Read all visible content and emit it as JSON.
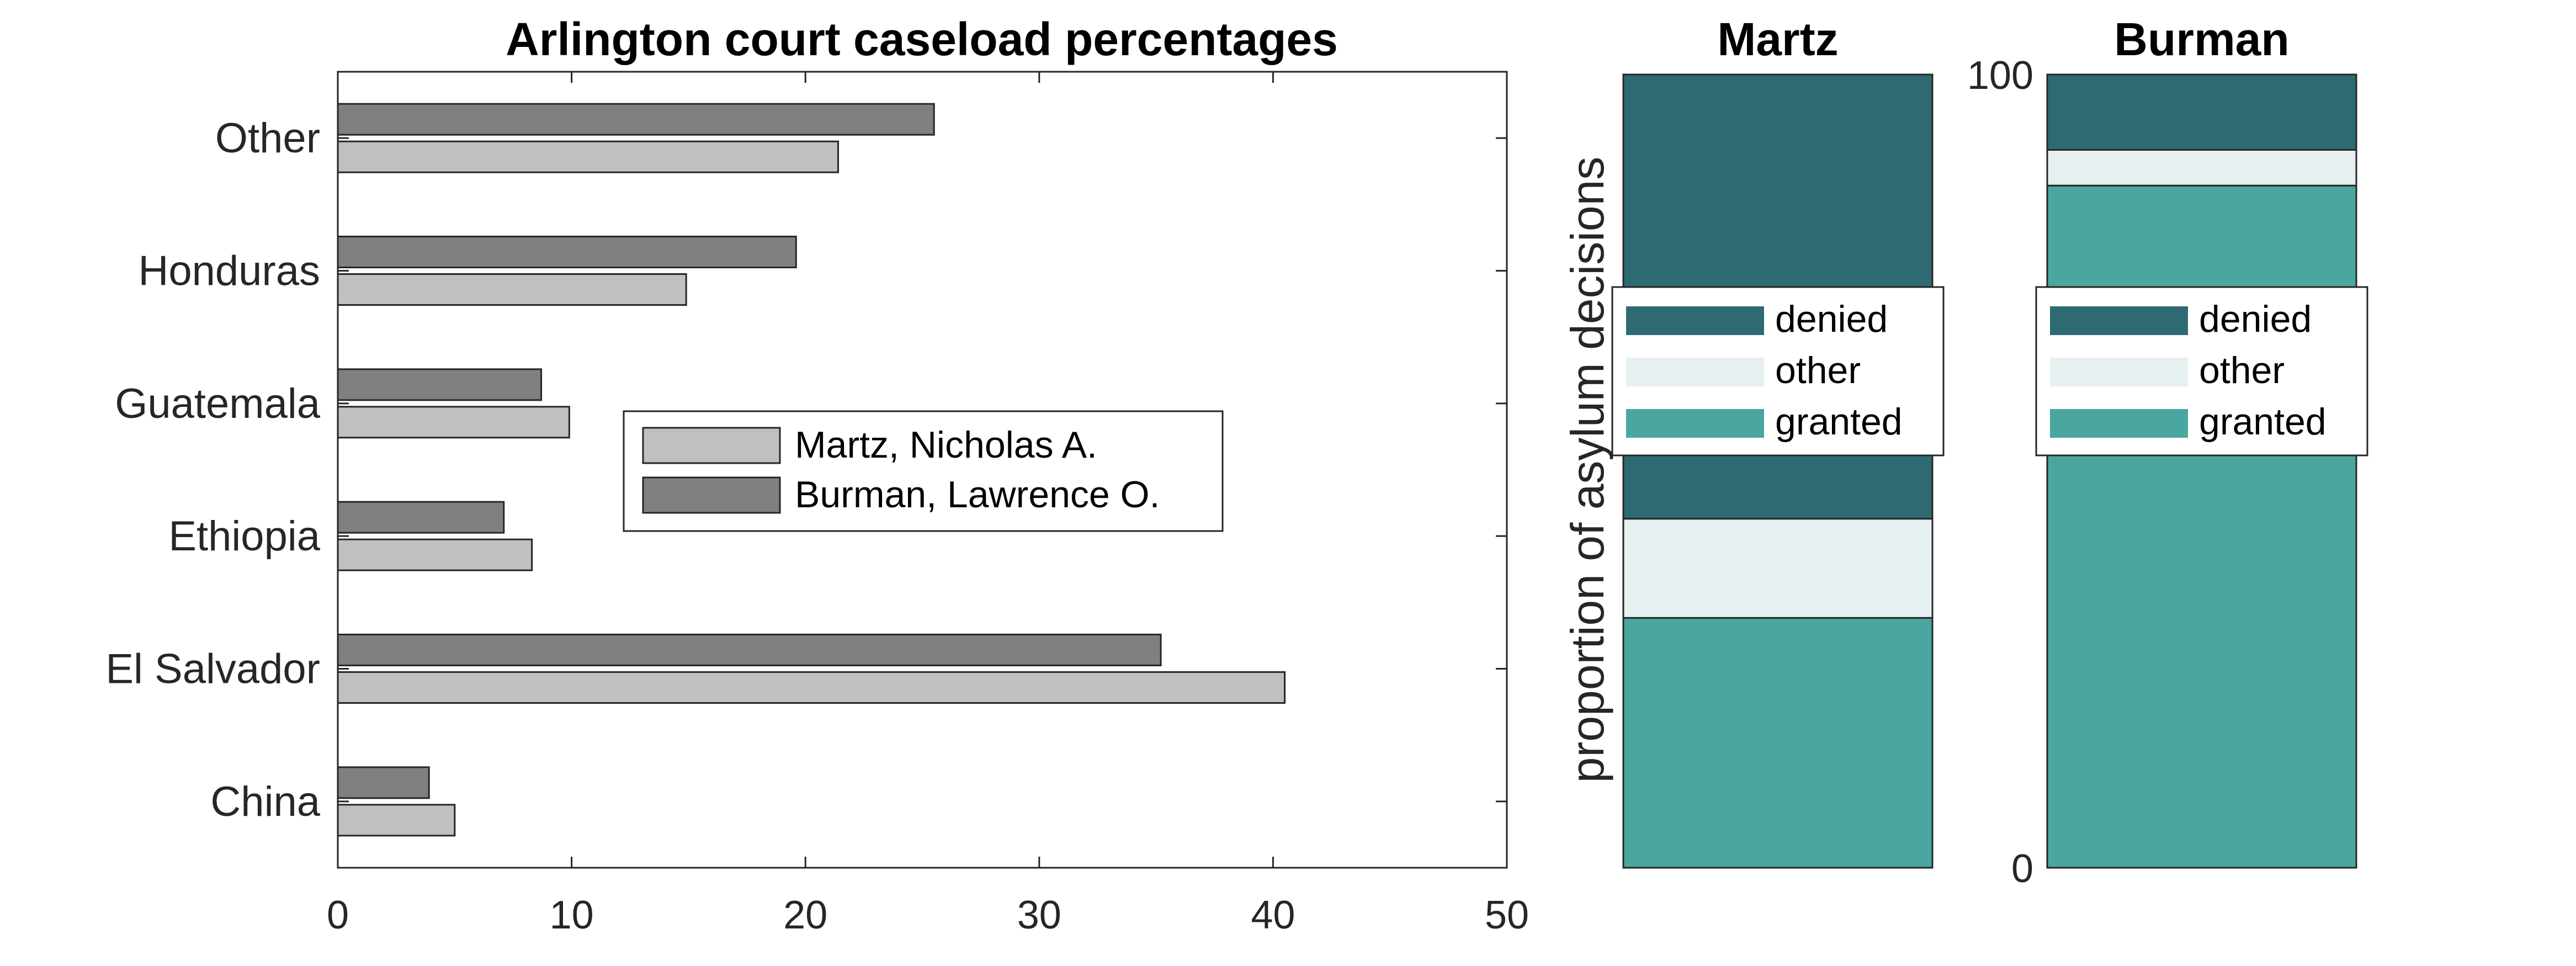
{
  "chart_data": [
    {
      "type": "bar",
      "orientation": "horizontal",
      "title": "Arlington court caseload percentages",
      "categories": [
        "China",
        "El Salvador",
        "Ethiopia",
        "Guatemala",
        "Honduras",
        "Other"
      ],
      "series": [
        {
          "name": "Martz, Nicholas A.",
          "color": "#c0c0c0",
          "values": [
            5.0,
            40.5,
            8.3,
            9.9,
            14.9,
            21.4
          ]
        },
        {
          "name": "Burman, Lawrence O.",
          "color": "#808080",
          "values": [
            3.9,
            35.2,
            7.1,
            8.7,
            19.6,
            25.5
          ]
        }
      ],
      "xlim": [
        0,
        50
      ],
      "xticks": [
        0,
        10,
        20,
        30,
        40,
        50
      ],
      "legend_position": "center"
    },
    {
      "type": "bar",
      "stacked": true,
      "title": "Martz",
      "ylabel": "proportion of asylum decisions",
      "ylim": [
        0,
        100
      ],
      "segments": [
        {
          "name": "granted",
          "color": "#4aa79f",
          "value": 31.5
        },
        {
          "name": "other",
          "color": "#e6f0f1",
          "value": 12.5
        },
        {
          "name": "denied",
          "color": "#2e6a72",
          "value": 56.0
        }
      ],
      "legend_order": [
        "denied",
        "other",
        "granted"
      ],
      "legend_position": "center"
    },
    {
      "type": "bar",
      "stacked": true,
      "title": "Burman",
      "ylim": [
        0,
        100
      ],
      "yticks": [
        0,
        100
      ],
      "segments": [
        {
          "name": "granted",
          "color": "#4aa79f",
          "value": 86.0
        },
        {
          "name": "other",
          "color": "#e6f0f1",
          "value": 4.5
        },
        {
          "name": "denied",
          "color": "#2e6a72",
          "value": 9.5
        }
      ],
      "legend_order": [
        "denied",
        "other",
        "granted"
      ],
      "legend_position": "center"
    }
  ]
}
